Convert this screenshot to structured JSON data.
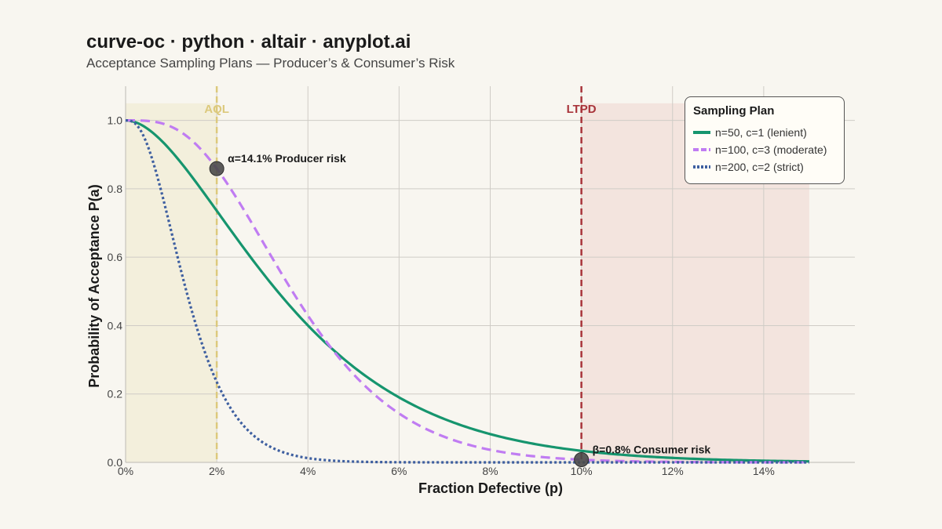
{
  "title": "curve-oc · python · altair · anyplot.ai",
  "subtitle": "Acceptance Sampling Plans — Producer’s & Consumer’s Risk",
  "colors": {
    "background": "#f8f6f0",
    "aql_region": "#f3efdc",
    "ltpd_region": "#f3e4de",
    "aql_line": "#dcc97c",
    "ltpd_line": "#a8343a",
    "grid": "#cfccc6",
    "marker": "#4a4a4a"
  },
  "chart_data": {
    "type": "line",
    "xlabel": "Fraction Defective (p)",
    "ylabel": "Probability of Acceptance P(a)",
    "xlim": [
      0,
      0.16
    ],
    "ylim": [
      0,
      1.1
    ],
    "x_ticks": [
      0,
      0.02,
      0.04,
      0.06,
      0.08,
      0.1,
      0.12,
      0.14
    ],
    "x_tick_labels": [
      "0%",
      "2%",
      "4%",
      "6%",
      "8%",
      "10%",
      "12%",
      "14%"
    ],
    "y_ticks": [
      0,
      0.2,
      0.4,
      0.6,
      0.8,
      1.0
    ],
    "y_tick_labels": [
      "0.0",
      "0.2",
      "0.4",
      "0.6",
      "0.8",
      "1.0"
    ],
    "grid": true,
    "legend": {
      "title": "Sampling Plan",
      "placement": "top-right"
    },
    "series": [
      {
        "name": "n=50, c=1 (lenient)",
        "n": 50,
        "c": 1,
        "color": "#16956e",
        "dash": "solid"
      },
      {
        "name": "n=100, c=3 (moderate)",
        "n": 100,
        "c": 3,
        "color": "#c07cf2",
        "dash": "dashed"
      },
      {
        "name": "n=200, c=2 (strict)",
        "n": 200,
        "c": 2,
        "color": "#3e5fa0",
        "dash": "dotted"
      }
    ],
    "p_max": 0.15,
    "aql": {
      "label": "AQL",
      "p": 0.02
    },
    "ltpd": {
      "label": "LTPD",
      "p": 0.1
    },
    "annotations": [
      {
        "text": "α=14.1% Producer risk",
        "x": 0.02,
        "y": 0.859
      },
      {
        "text": "β=0.8% Consumer risk",
        "x": 0.1,
        "y": 0.008
      }
    ]
  }
}
